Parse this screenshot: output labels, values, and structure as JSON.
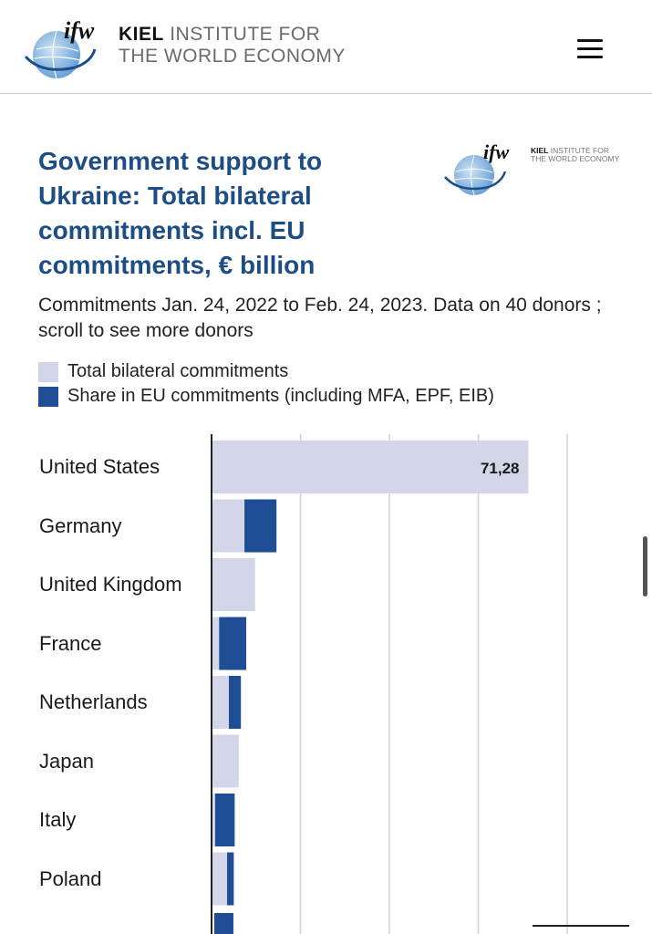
{
  "header": {
    "logo_mark": "ifw",
    "logo_line1_bold": "KIEL",
    "logo_line1_rest": "INSTITUTE FOR",
    "logo_line2": "THE WORLD ECONOMY",
    "menu_icon": "hamburger-menu-icon"
  },
  "colors": {
    "brand_blue": "#1d4d86",
    "total_bar": "#d3d5e8",
    "eu_bar": "#1f4e96",
    "grid": "#d0d0d0"
  },
  "chart_data": {
    "type": "bar",
    "orientation": "horizontal",
    "title": "Government support to Ukraine: Total bilateral commitments incl. EU commitments, € billion",
    "subtitle": "Commitments Jan. 24, 2022 to Feb. 24, 2023. Data on 40 donors ; scroll to see more donors",
    "legend": [
      {
        "label": "Total bilateral commitments",
        "color": "#d3d5e8"
      },
      {
        "label": "Share in EU commitments (including MFA, EPF, EIB)",
        "color": "#1f4e96"
      }
    ],
    "categories": [
      "United States",
      "Germany",
      "United Kingdom",
      "France",
      "Netherlands",
      "Japan",
      "Italy",
      "Poland"
    ],
    "series": [
      {
        "name": "Total bilateral commitments",
        "values": [
          71.28,
          7.4,
          9.8,
          1.7,
          3.9,
          6.1,
          0.8,
          3.5
        ]
      },
      {
        "name": "Share in EU commitments (including MFA, EPF, EIB)",
        "values": [
          0,
          7.2,
          0,
          6.1,
          2.7,
          0,
          4.4,
          1.5
        ]
      }
    ],
    "data_labels": [
      "71,28",
      "",
      "",
      "",
      "",
      "",
      "",
      ""
    ],
    "partial_next_category": {
      "name": "",
      "total": 0,
      "eu": 4.3
    },
    "xlim": [
      0,
      80
    ],
    "grid_step": 20,
    "grid": true
  }
}
